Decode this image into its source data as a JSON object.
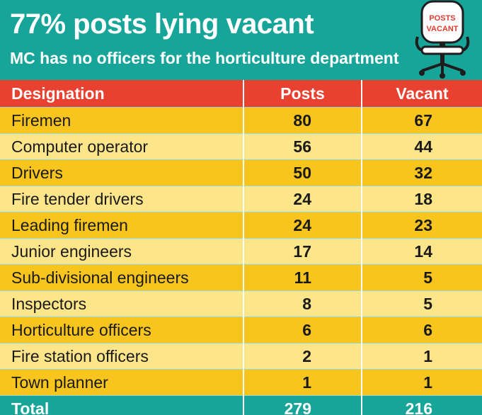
{
  "header": {
    "title": "77% posts lying vacant",
    "subtitle": "MC has no officers for the horticulture department",
    "sign_line1": "POSTS",
    "sign_line2": "VACANT"
  },
  "colors": {
    "teal_background": "#17a499",
    "header_row": "#e8412f",
    "row_dark": "#f7c51e",
    "row_light": "#fde58a"
  },
  "chart_data": {
    "type": "table",
    "columns": [
      "Designation",
      "Posts",
      "Vacant"
    ],
    "rows": [
      [
        "Firemen",
        "80",
        "67"
      ],
      [
        "Computer operator",
        "56",
        "44"
      ],
      [
        "Drivers",
        "50",
        "32"
      ],
      [
        "Fire tender drivers",
        "24",
        "18"
      ],
      [
        "Leading firemen",
        "24",
        "23"
      ],
      [
        "Junior engineers",
        "17",
        "14"
      ],
      [
        "Sub-divisional engineers",
        "11",
        "5"
      ],
      [
        "Inspectors",
        "8",
        "5"
      ],
      [
        "Horticulture officers",
        "6",
        "6"
      ],
      [
        "Fire station officers",
        "2",
        "1"
      ],
      [
        "Town planner",
        "1",
        "1"
      ]
    ],
    "total": [
      "Total",
      "279",
      "216"
    ]
  }
}
